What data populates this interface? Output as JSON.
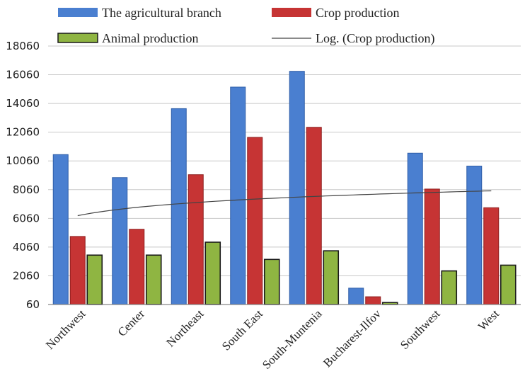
{
  "chart_data": {
    "type": "bar",
    "title": "",
    "xlabel": "",
    "ylabel": "",
    "categories": [
      "Northwest",
      "Center",
      "Northeast",
      "South East",
      "South-Muntenia",
      "Bucharest-Ilfov",
      "Southwest",
      "West"
    ],
    "series": [
      {
        "name": "The agricultural branch",
        "color": "#4a7fd0",
        "values": [
          10500,
          8900,
          13700,
          15200,
          16300,
          1200,
          10600,
          9700
        ]
      },
      {
        "name": "Crop production",
        "color": "#c63434",
        "values": [
          4800,
          5300,
          9100,
          11700,
          12400,
          600,
          8100,
          6800
        ]
      },
      {
        "name": "Animal production",
        "color": "#8fb542",
        "values": [
          3500,
          3500,
          4400,
          3200,
          3800,
          200,
          2400,
          2800
        ]
      }
    ],
    "trendline": {
      "name": "Log. (Crop production)",
      "type": "logarithmic",
      "of_series": "Crop production",
      "color": "#444444"
    },
    "yticks": [
      "60",
      "2060",
      "4060",
      "6060",
      "8060",
      "10060",
      "12060",
      "14060",
      "16060",
      "18060"
    ],
    "ylim": [
      60,
      18060
    ],
    "grid": true,
    "legend_position": "top"
  }
}
